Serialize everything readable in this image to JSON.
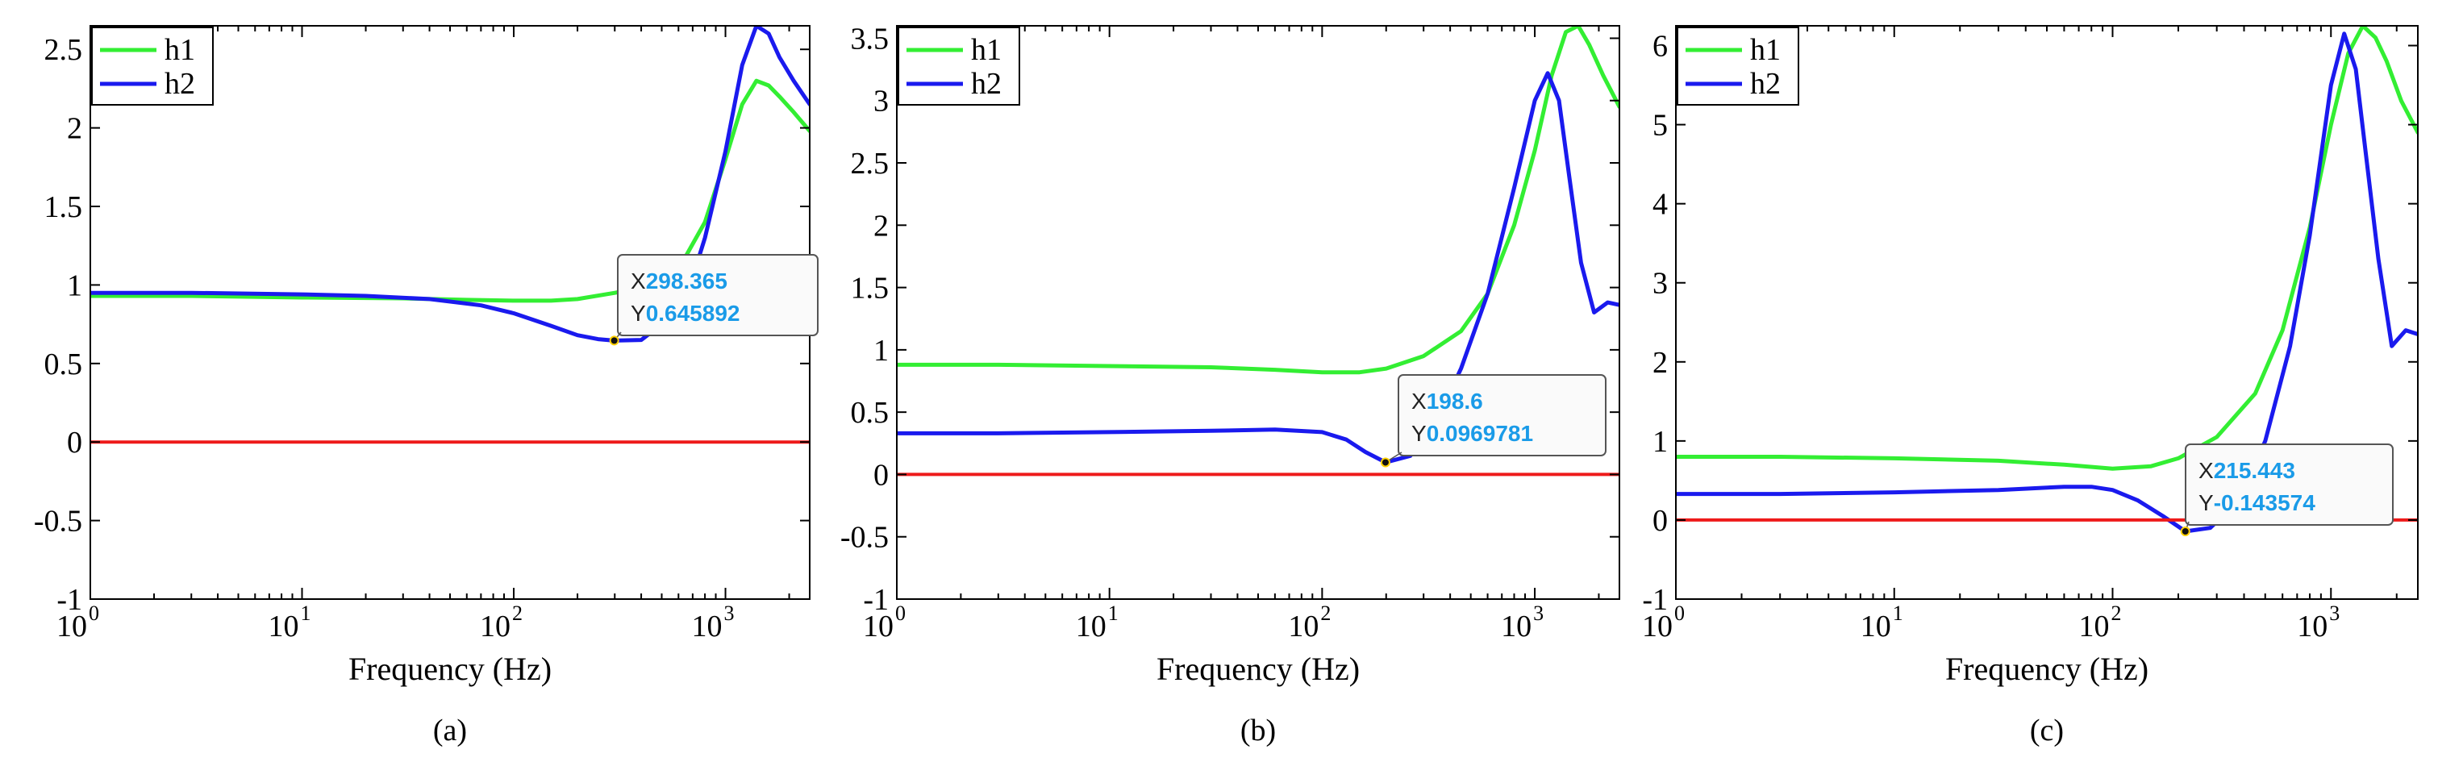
{
  "chart_data": [
    {
      "type": "line",
      "caption": "(a)",
      "xlabel": "Frequency (Hz)",
      "xscale": "log",
      "xlim": [
        1,
        2500
      ],
      "ylim": [
        -1,
        2.65
      ],
      "x_ticks": [
        {
          "base": "10",
          "exp": "0"
        },
        {
          "base": "10",
          "exp": "1"
        },
        {
          "base": "10",
          "exp": "2"
        },
        {
          "base": "10",
          "exp": "3"
        }
      ],
      "y_ticks": [
        -1,
        -0.5,
        0,
        0.5,
        1,
        1.5,
        2,
        2.5
      ],
      "y_tick_labels": [
        "-1",
        "-0.5",
        "0",
        "0.5",
        "1",
        "1.5",
        "2",
        "2.5"
      ],
      "legend": "top-left",
      "series": [
        {
          "name": "h1",
          "color": "#33ee33",
          "x": [
            1,
            3,
            10,
            30,
            60,
            100,
            150,
            200,
            300,
            450,
            600,
            800,
            1000,
            1200,
            1400,
            1600,
            1800,
            2100,
            2500
          ],
          "y": [
            0.93,
            0.93,
            0.92,
            0.915,
            0.905,
            0.9,
            0.9,
            0.91,
            0.95,
            1.0,
            1.1,
            1.4,
            1.8,
            2.15,
            2.3,
            2.27,
            2.2,
            2.1,
            1.98
          ]
        },
        {
          "name": "h2",
          "color": "#1a1aee",
          "x": [
            1,
            3,
            10,
            20,
            40,
            70,
            100,
            150,
            200,
            250,
            298.365,
            400,
            500,
            600,
            700,
            800,
            1000,
            1200,
            1400,
            1600,
            1800,
            2100,
            2500
          ],
          "y": [
            0.95,
            0.95,
            0.94,
            0.93,
            0.91,
            0.87,
            0.82,
            0.74,
            0.68,
            0.655,
            0.645892,
            0.65,
            0.75,
            0.9,
            1.05,
            1.3,
            1.85,
            2.4,
            2.65,
            2.6,
            2.45,
            2.3,
            2.15
          ]
        },
        {
          "name": "zero",
          "color": "#ee1a1a",
          "x": [
            1,
            2500
          ],
          "y": [
            0,
            0
          ]
        }
      ],
      "datatip": {
        "x": 298.365,
        "y": 0.645892,
        "x_key": "X",
        "y_key": "Y",
        "x_label": "298.365",
        "y_label": "0.645892"
      }
    },
    {
      "type": "line",
      "caption": "(b)",
      "xlabel": "Frequency (Hz)",
      "xscale": "log",
      "xlim": [
        1,
        2500
      ],
      "ylim": [
        -1,
        3.6
      ],
      "x_ticks": [
        {
          "base": "10",
          "exp": "0"
        },
        {
          "base": "10",
          "exp": "1"
        },
        {
          "base": "10",
          "exp": "2"
        },
        {
          "base": "10",
          "exp": "3"
        }
      ],
      "y_ticks": [
        -1,
        -0.5,
        0,
        0.5,
        1,
        1.5,
        2,
        2.5,
        3,
        3.5
      ],
      "y_tick_labels": [
        "-1",
        "-0.5",
        "0",
        "0.5",
        "1",
        "1.5",
        "2",
        "2.5",
        "3",
        "3.5"
      ],
      "legend": "top-left",
      "series": [
        {
          "name": "h1",
          "color": "#33ee33",
          "x": [
            1,
            3,
            10,
            30,
            60,
            100,
            150,
            200,
            300,
            450,
            600,
            800,
            1000,
            1200,
            1400,
            1600,
            1800,
            2100,
            2500
          ],
          "y": [
            0.88,
            0.88,
            0.87,
            0.86,
            0.84,
            0.82,
            0.82,
            0.85,
            0.95,
            1.15,
            1.45,
            2.0,
            2.6,
            3.2,
            3.55,
            3.6,
            3.45,
            3.2,
            2.95
          ]
        },
        {
          "name": "h2",
          "color": "#1a1aee",
          "x": [
            1,
            3,
            10,
            30,
            60,
            100,
            130,
            160,
            198.6,
            260,
            350,
            450,
            600,
            800,
            1000,
            1150,
            1300,
            1450,
            1650,
            1900,
            2200,
            2500
          ],
          "y": [
            0.33,
            0.33,
            0.34,
            0.35,
            0.36,
            0.34,
            0.28,
            0.18,
            0.0969781,
            0.15,
            0.45,
            0.85,
            1.45,
            2.3,
            3.0,
            3.22,
            3.0,
            2.4,
            1.7,
            1.3,
            1.38,
            1.36
          ]
        },
        {
          "name": "zero",
          "color": "#ee1a1a",
          "x": [
            1,
            2500
          ],
          "y": [
            0,
            0
          ]
        }
      ],
      "datatip": {
        "x": 198.6,
        "y": 0.0969781,
        "x_key": "X",
        "y_key": "Y",
        "x_label": "198.6",
        "y_label": "0.0969781"
      }
    },
    {
      "type": "line",
      "caption": "(c)",
      "xlabel": "Frequency (Hz)",
      "xscale": "log",
      "xlim": [
        1,
        2500
      ],
      "ylim": [
        -1,
        6.25
      ],
      "x_ticks": [
        {
          "base": "10",
          "exp": "0"
        },
        {
          "base": "10",
          "exp": "1"
        },
        {
          "base": "10",
          "exp": "2"
        },
        {
          "base": "10",
          "exp": "3"
        }
      ],
      "y_ticks": [
        -1,
        0,
        1,
        2,
        3,
        4,
        5,
        6
      ],
      "y_tick_labels": [
        "-1",
        "0",
        "1",
        "2",
        "3",
        "4",
        "5",
        "6"
      ],
      "legend": "top-left",
      "series": [
        {
          "name": "h1",
          "color": "#33ee33",
          "x": [
            1,
            3,
            10,
            30,
            60,
            100,
            150,
            200,
            300,
            450,
            600,
            800,
            1000,
            1200,
            1400,
            1600,
            1800,
            2100,
            2500
          ],
          "y": [
            0.8,
            0.8,
            0.78,
            0.75,
            0.7,
            0.65,
            0.68,
            0.78,
            1.05,
            1.6,
            2.4,
            3.7,
            5.0,
            5.9,
            6.25,
            6.1,
            5.8,
            5.3,
            4.9
          ]
        },
        {
          "name": "h2",
          "color": "#1a1aee",
          "x": [
            1,
            3,
            10,
            30,
            60,
            80,
            100,
            130,
            170,
            215.443,
            280,
            380,
            500,
            650,
            800,
            1000,
            1150,
            1300,
            1450,
            1650,
            1900,
            2200,
            2500
          ],
          "y": [
            0.33,
            0.33,
            0.35,
            0.38,
            0.42,
            0.42,
            0.38,
            0.25,
            0.05,
            -0.143574,
            -0.1,
            0.25,
            1.0,
            2.2,
            3.6,
            5.5,
            6.15,
            5.7,
            4.6,
            3.3,
            2.2,
            2.4,
            2.35
          ]
        },
        {
          "name": "zero",
          "color": "#ee1a1a",
          "x": [
            1,
            2500
          ],
          "y": [
            0,
            0
          ]
        }
      ],
      "datatip": {
        "x": 215.443,
        "y": -0.143574,
        "x_key": "X",
        "y_key": "Y",
        "x_label": "215.443",
        "y_label": "-0.143574"
      }
    }
  ]
}
